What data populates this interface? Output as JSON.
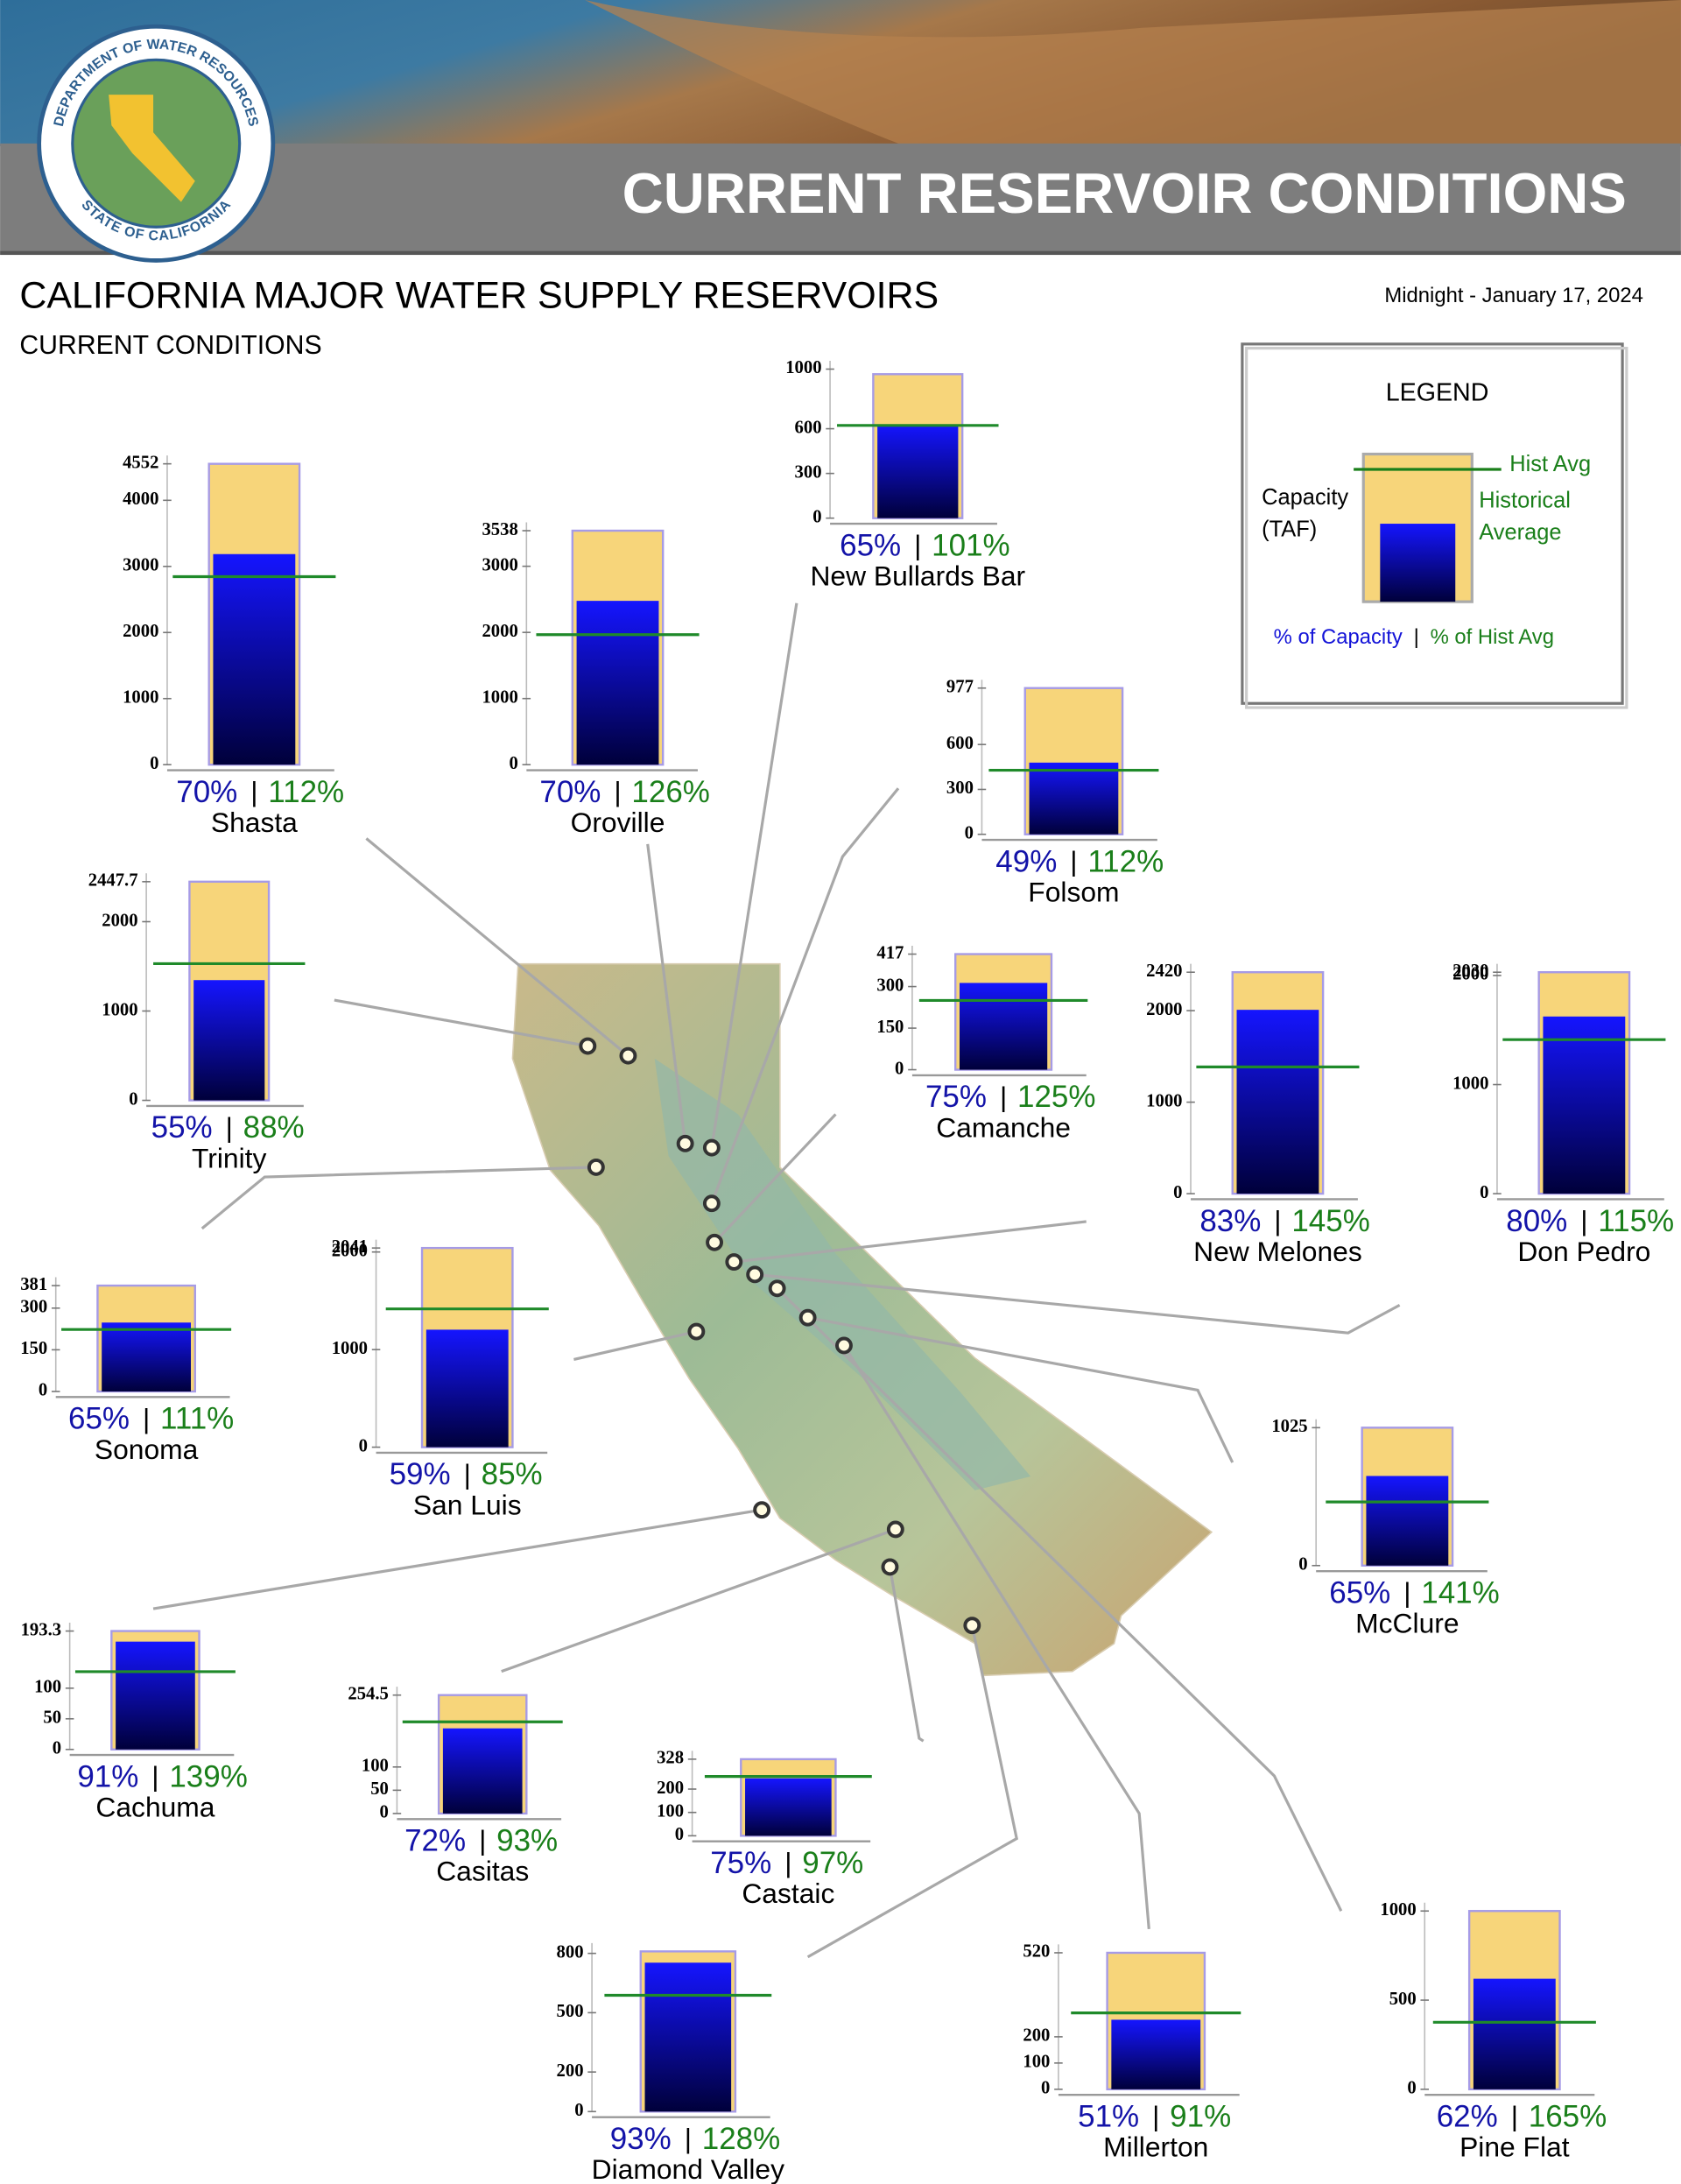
{
  "header": {
    "banner": "CURRENT RESERVOIR CONDITIONS",
    "logo_top": "DEPARTMENT OF WATER RESOURCES",
    "logo_bottom": "STATE OF CALIFORNIA"
  },
  "title": "CALIFORNIA MAJOR WATER SUPPLY RESERVOIRS",
  "subtitle": "CURRENT CONDITIONS",
  "date": "Midnight - January 17, 2024",
  "legend": {
    "title": "LEGEND",
    "capacity": "Capacity",
    "capacity_unit": "(TAF)",
    "hist_avg": "Hist Avg",
    "historical": "Historical",
    "average": "Average",
    "pct_capacity": "% of Capacity",
    "separator": "|",
    "pct_hist": "% of Hist Avg"
  },
  "chart_data": [
    {
      "type": "reservoir",
      "name": "Shasta",
      "capacity": 4552,
      "storage": 3186,
      "hist_avg": 2845,
      "values": [
        70,
        112
      ],
      "value_labels": [
        "70%",
        "112%"
      ],
      "ylim": [
        0,
        4552
      ],
      "yticks": [
        0,
        1000,
        2000,
        3000,
        4000,
        4552
      ]
    },
    {
      "type": "reservoir",
      "name": "Oroville",
      "capacity": 3538,
      "storage": 2477,
      "hist_avg": 1966,
      "values": [
        70,
        126
      ],
      "value_labels": [
        "70%",
        "126%"
      ],
      "ylim": [
        0,
        3538
      ],
      "yticks": [
        0,
        1000,
        2000,
        3000,
        3538
      ]
    },
    {
      "type": "reservoir",
      "name": "New Bullards Bar",
      "capacity": 966,
      "storage": 628,
      "hist_avg": 622,
      "values": [
        65,
        101
      ],
      "value_labels": [
        "65%",
        "101%"
      ],
      "ylim": [
        0,
        1000
      ],
      "yticks": [
        0,
        300,
        600,
        1000
      ]
    },
    {
      "type": "reservoir",
      "name": "Folsom",
      "capacity": 977,
      "storage": 479,
      "hist_avg": 428,
      "values": [
        49,
        112
      ],
      "value_labels": [
        "49%",
        "112%"
      ],
      "ylim": [
        0,
        977
      ],
      "yticks": [
        0,
        300,
        600,
        977
      ]
    },
    {
      "type": "reservoir",
      "name": "Trinity",
      "capacity": 2447.7,
      "storage": 1346,
      "hist_avg": 1530,
      "values": [
        55,
        88
      ],
      "value_labels": [
        "55%",
        "88%"
      ],
      "ylim": [
        0,
        2447.7
      ],
      "yticks": [
        0,
        1000,
        2000,
        2447.7
      ]
    },
    {
      "type": "reservoir",
      "name": "Camanche",
      "capacity": 417,
      "storage": 313,
      "hist_avg": 250,
      "values": [
        75,
        125
      ],
      "value_labels": [
        "75%",
        "125%"
      ],
      "ylim": [
        0,
        417
      ],
      "yticks": [
        0,
        150,
        300,
        417
      ]
    },
    {
      "type": "reservoir",
      "name": "New Melones",
      "capacity": 2420,
      "storage": 2009,
      "hist_avg": 1385,
      "values": [
        83,
        145
      ],
      "value_labels": [
        "83%",
        "145%"
      ],
      "ylim": [
        0,
        2420
      ],
      "yticks": [
        0,
        1000,
        2000,
        2420
      ]
    },
    {
      "type": "reservoir",
      "name": "Don Pedro",
      "capacity": 2030,
      "storage": 1624,
      "hist_avg": 1412,
      "values": [
        80,
        115
      ],
      "value_labels": [
        "80%",
        "115%"
      ],
      "ylim": [
        0,
        2030
      ],
      "yticks": [
        0,
        1000,
        2000,
        2030
      ]
    },
    {
      "type": "reservoir",
      "name": "Sonoma",
      "capacity": 381,
      "storage": 248,
      "hist_avg": 223,
      "values": [
        65,
        111
      ],
      "value_labels": [
        "65%",
        "111%"
      ],
      "ylim": [
        0,
        381
      ],
      "yticks": [
        0,
        150,
        300,
        381
      ]
    },
    {
      "type": "reservoir",
      "name": "San Luis",
      "capacity": 2041,
      "storage": 1204,
      "hist_avg": 1417,
      "values": [
        59,
        85
      ],
      "value_labels": [
        "59%",
        "85%"
      ],
      "ylim": [
        0,
        2041
      ],
      "yticks": [
        0,
        1000,
        2000,
        2041
      ]
    },
    {
      "type": "reservoir",
      "name": "McClure",
      "capacity": 1025,
      "storage": 666,
      "hist_avg": 473,
      "values": [
        65,
        141
      ],
      "value_labels": [
        "65%",
        "141%"
      ],
      "ylim": [
        0,
        1025
      ],
      "yticks": [
        0,
        1025
      ]
    },
    {
      "type": "reservoir",
      "name": "Cachuma",
      "capacity": 193.3,
      "storage": 176,
      "hist_avg": 127,
      "values": [
        91,
        139
      ],
      "value_labels": [
        "91%",
        "139%"
      ],
      "ylim": [
        0,
        193.3
      ],
      "yticks": [
        0,
        50,
        100,
        193.3
      ]
    },
    {
      "type": "reservoir",
      "name": "Casitas",
      "capacity": 254.5,
      "storage": 183,
      "hist_avg": 197,
      "values": [
        72,
        93
      ],
      "value_labels": [
        "72%",
        "93%"
      ],
      "ylim": [
        0,
        254.5
      ],
      "yticks": [
        0,
        50,
        100,
        254.5
      ]
    },
    {
      "type": "reservoir",
      "name": "Castaic",
      "capacity": 328,
      "storage": 246,
      "hist_avg": 254,
      "values": [
        75,
        97
      ],
      "value_labels": [
        "75%",
        "97%"
      ],
      "ylim": [
        0,
        328
      ],
      "yticks": [
        0,
        100,
        200,
        328
      ]
    },
    {
      "type": "reservoir",
      "name": "Diamond Valley",
      "capacity": 810,
      "storage": 753,
      "hist_avg": 588,
      "values": [
        93,
        128
      ],
      "value_labels": [
        "93%",
        "128%"
      ],
      "ylim": [
        0,
        810
      ],
      "yticks": [
        0,
        200,
        500,
        800
      ]
    },
    {
      "type": "reservoir",
      "name": "Millerton",
      "capacity": 520,
      "storage": 265,
      "hist_avg": 291,
      "values": [
        51,
        91
      ],
      "value_labels": [
        "51%",
        "91%"
      ],
      "ylim": [
        0,
        520
      ],
      "yticks": [
        0,
        100,
        200,
        520
      ]
    },
    {
      "type": "reservoir",
      "name": "Pine Flat",
      "capacity": 1000,
      "storage": 620,
      "hist_avg": 376,
      "values": [
        62,
        165
      ],
      "value_labels": [
        "62%",
        "165%"
      ],
      "ylim": [
        0,
        1000
      ],
      "yticks": [
        0,
        500,
        1000
      ]
    }
  ]
}
